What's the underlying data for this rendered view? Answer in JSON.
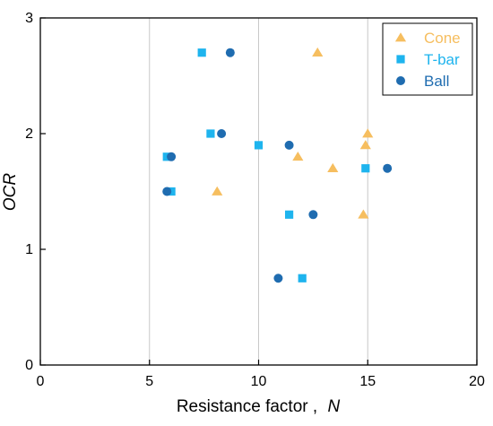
{
  "chart_data": {
    "type": "scatter",
    "xlabel": "Resistance factor ,",
    "xlabel_italic": "N",
    "ylabel": "OCR",
    "xlim": [
      0,
      20
    ],
    "ylim": [
      0,
      3
    ],
    "xticks": [
      0,
      5,
      10,
      15,
      20
    ],
    "yticks": [
      0,
      1,
      2,
      3
    ],
    "vertical_gridlines_at": [
      5,
      10,
      15
    ],
    "legend_position": "top-right",
    "series": [
      {
        "name": "Cone",
        "marker": "triangle",
        "color": "#F6BE5F",
        "points": [
          {
            "x": 12.7,
            "y": 2.7
          },
          {
            "x": 15.0,
            "y": 2.0
          },
          {
            "x": 14.9,
            "y": 1.9
          },
          {
            "x": 11.8,
            "y": 1.8
          },
          {
            "x": 13.4,
            "y": 1.7
          },
          {
            "x": 8.1,
            "y": 1.5
          },
          {
            "x": 14.8,
            "y": 1.3
          }
        ]
      },
      {
        "name": "T-bar",
        "marker": "square",
        "color": "#1EB4EE",
        "points": [
          {
            "x": 7.4,
            "y": 2.7
          },
          {
            "x": 7.8,
            "y": 2.0
          },
          {
            "x": 10.0,
            "y": 1.9
          },
          {
            "x": 5.8,
            "y": 1.8
          },
          {
            "x": 14.9,
            "y": 1.7
          },
          {
            "x": 6.0,
            "y": 1.5
          },
          {
            "x": 11.4,
            "y": 1.3
          },
          {
            "x": 12.0,
            "y": 0.75
          }
        ]
      },
      {
        "name": "Ball",
        "marker": "circle",
        "color": "#1F6CB0",
        "points": [
          {
            "x": 8.7,
            "y": 2.7
          },
          {
            "x": 8.3,
            "y": 2.0
          },
          {
            "x": 11.4,
            "y": 1.9
          },
          {
            "x": 6.0,
            "y": 1.8
          },
          {
            "x": 15.9,
            "y": 1.7
          },
          {
            "x": 5.8,
            "y": 1.5
          },
          {
            "x": 12.5,
            "y": 1.3
          },
          {
            "x": 10.9,
            "y": 0.75
          }
        ]
      }
    ]
  }
}
